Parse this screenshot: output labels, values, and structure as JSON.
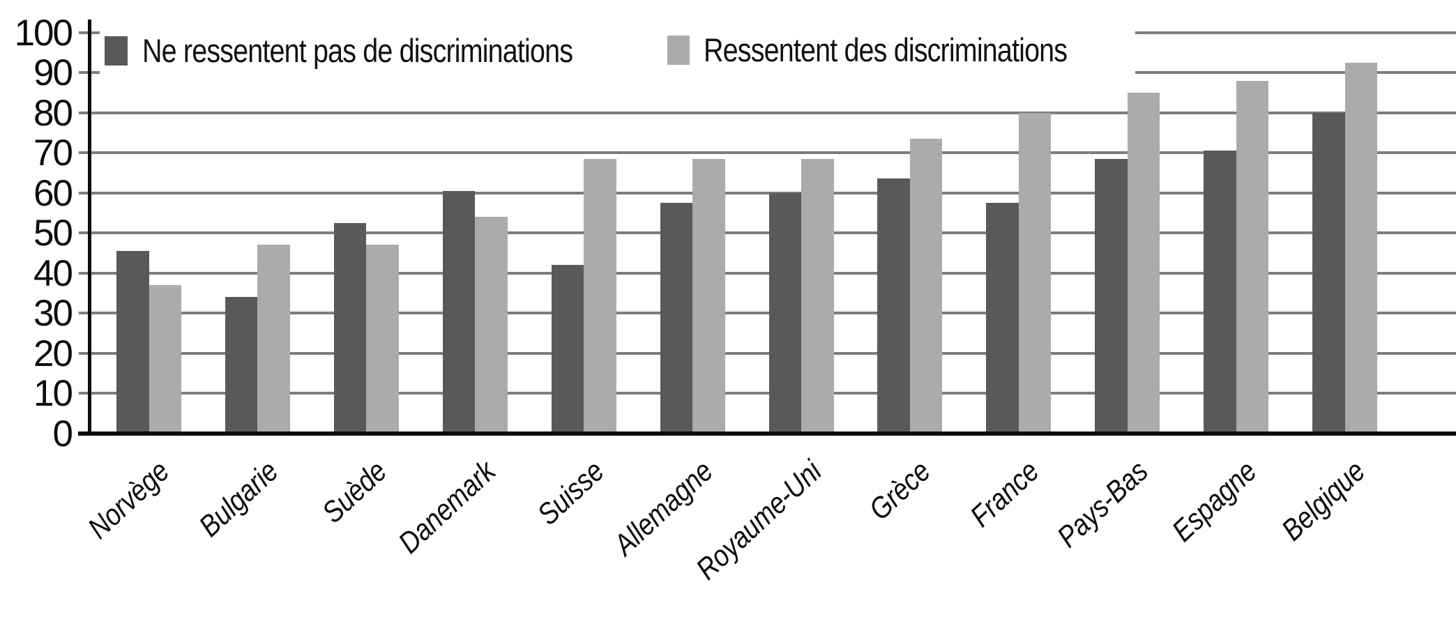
{
  "chart_data": {
    "type": "bar",
    "title": "",
    "categories": [
      "Norvège",
      "Bulgarie",
      "Suède",
      "Danemark",
      "Suisse",
      "Allemagne",
      "Royaume-Uni",
      "Grèce",
      "France",
      "Pays-Bas",
      "Espagne",
      "Belgique"
    ],
    "series": [
      {
        "name": "Ne ressentent pas de discriminations",
        "color": "#58595B",
        "values": [
          45.5,
          34,
          52.5,
          60.5,
          42,
          57.5,
          60,
          63.5,
          57.5,
          68.5,
          70.5,
          80
        ]
      },
      {
        "name": "Ressentent des discriminations",
        "color": "#A9ABAD",
        "values": [
          37,
          47,
          47,
          54,
          68.5,
          68.5,
          68.5,
          73.5,
          80,
          85,
          88,
          92.5
        ]
      }
    ],
    "xlabel": "",
    "ylabel": "",
    "ylim": [
      0,
      100
    ],
    "yticks": [
      0,
      10,
      20,
      30,
      40,
      50,
      60,
      70,
      80,
      90,
      100
    ],
    "grid": "horizontal-gridlines-10-to-80-full-width-90-100-right-stub-only",
    "legend_position": "top"
  },
  "colors": {
    "bar_dark": "#58595B",
    "bar_light": "#A9ABAD",
    "gridline": "#7B7D80",
    "axis": "#0D0D0D"
  }
}
